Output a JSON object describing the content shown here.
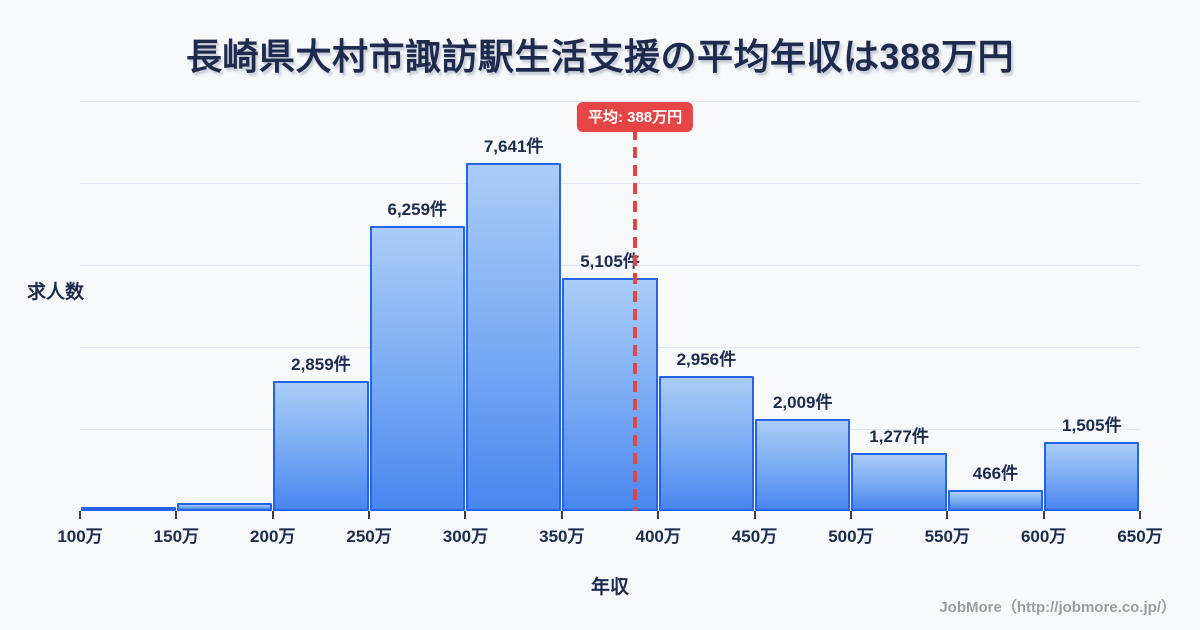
{
  "title": "長崎県大村市諏訪駅生活支援の平均年収は388万円",
  "chart_data": {
    "type": "bar",
    "subtype": "histogram",
    "title": "長崎県大村市諏訪駅生活支援の平均年収は388万円",
    "xlabel": "年収",
    "ylabel": "求人数",
    "x_tick_labels": [
      "100万",
      "150万",
      "200万",
      "250万",
      "300万",
      "350万",
      "400万",
      "450万",
      "500万",
      "550万",
      "600万",
      "650万"
    ],
    "xlim": [
      100,
      650
    ],
    "ylim": [
      0,
      9000
    ],
    "grid": "horizontal",
    "grid_divisions": 5,
    "legend": false,
    "bars": [
      {
        "bin": "100万-150万",
        "value": 65,
        "label": ""
      },
      {
        "bin": "150万-200万",
        "value": 180,
        "label": ""
      },
      {
        "bin": "200万-250万",
        "value": 2859,
        "label": "2,859件"
      },
      {
        "bin": "250万-300万",
        "value": 6259,
        "label": "6,259件"
      },
      {
        "bin": "300万-350万",
        "value": 7641,
        "label": "7,641件"
      },
      {
        "bin": "350万-400万",
        "value": 5105,
        "label": "5,105件"
      },
      {
        "bin": "400万-450万",
        "value": 2956,
        "label": "2,956件"
      },
      {
        "bin": "450万-500万",
        "value": 2009,
        "label": "2,009件"
      },
      {
        "bin": "500万-550万",
        "value": 1277,
        "label": "1,277件"
      },
      {
        "bin": "550万-600万",
        "value": 466,
        "label": "466件"
      },
      {
        "bin": "600万-650万",
        "value": 1505,
        "label": "1,505件"
      }
    ],
    "mean_line": {
      "value": 388,
      "label": "平均: 388万円"
    }
  },
  "footer": {
    "credit": "JobMore（http://jobmore.co.jp/）"
  },
  "colors": {
    "background": "#f7f8fa",
    "title_text": "#1e2b4e",
    "bar_fill_top": "#aacdf7",
    "bar_fill_bottom": "#4a86f0",
    "bar_border": "#2563eb",
    "grid_line": "#e2e6f0",
    "mean_red": "#e64545",
    "mean_label_text": "#ffffff",
    "tick_text": "#1d2b50",
    "axis_label_text": "#1d2b50",
    "footer_text": "#9b9da3"
  }
}
